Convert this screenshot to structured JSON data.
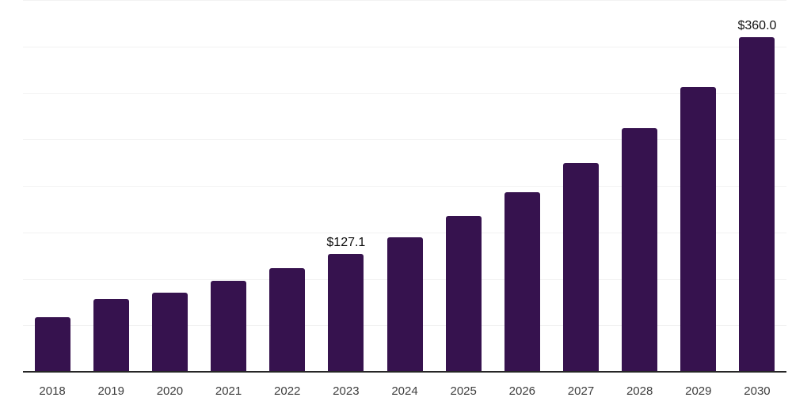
{
  "chart_data": {
    "type": "bar",
    "title": "",
    "xlabel": "",
    "ylabel": "",
    "categories": [
      "2018",
      "2019",
      "2020",
      "2021",
      "2022",
      "2023",
      "2024",
      "2025",
      "2026",
      "2027",
      "2028",
      "2029",
      "2030"
    ],
    "values": [
      59.0,
      78.1,
      85.2,
      98.0,
      111.4,
      127.1,
      144.9,
      167.3,
      193.6,
      224.5,
      261.9,
      306.3,
      360.0
    ],
    "data_labels": {
      "2023": "$127.1",
      "2030": "$360.0"
    },
    "ylim": [
      0,
      400
    ],
    "gridline_step": 50,
    "grid": "horizontal",
    "legend": "none",
    "colors": {
      "bar": "#36124e",
      "grid": "#f2f2f2",
      "axis": "#262626",
      "tick_label": "#3d3d3d",
      "value_label": "#111111",
      "background": "#ffffff"
    }
  }
}
